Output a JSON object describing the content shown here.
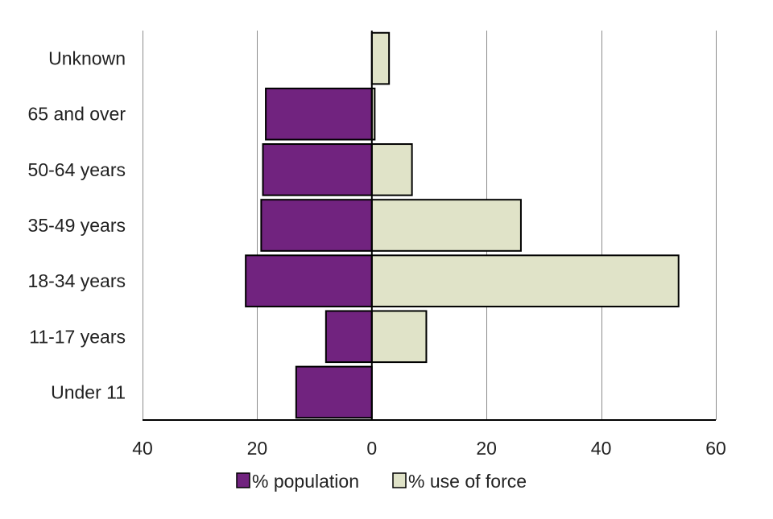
{
  "chart_data": {
    "type": "bar",
    "orientation": "horizontal",
    "layout": "population-pyramid",
    "title": "",
    "xlabel": "",
    "ylabel": "",
    "categories": [
      "Unknown",
      "65 and over",
      "50-64 years",
      "35-49 years",
      "18-34 years",
      "11-17 years",
      "Under 11"
    ],
    "series": [
      {
        "name": "% population",
        "side": "left",
        "color": "#71237F",
        "values": [
          0,
          18.5,
          19,
          19.3,
          22,
          8,
          13.2
        ]
      },
      {
        "name": "% use of force",
        "side": "right",
        "color": "#E0E3C8",
        "values": [
          3,
          0.5,
          7,
          26,
          53.5,
          9.5,
          0
        ]
      }
    ],
    "xlim": [
      -40,
      60
    ],
    "x_ticks": [
      -40,
      -20,
      0,
      20,
      40,
      60
    ],
    "x_tick_labels": [
      "40",
      "20",
      "0",
      "20",
      "40",
      "60"
    ],
    "grid": true,
    "legend_position": "bottom"
  }
}
